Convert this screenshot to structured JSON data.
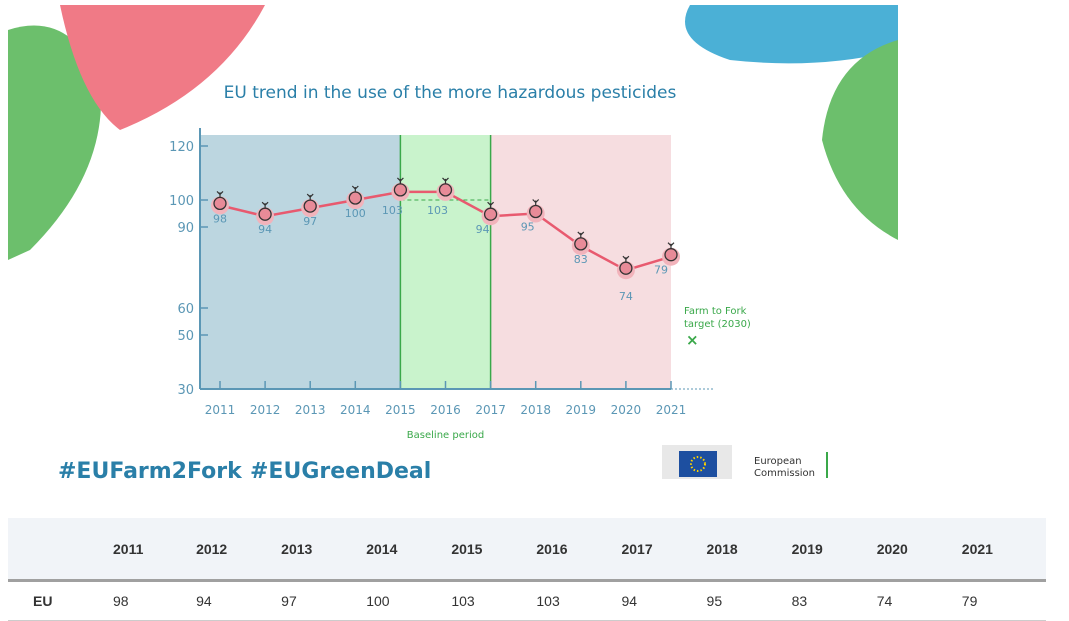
{
  "chart_data": {
    "type": "line",
    "title": "EU trend in the use of the more hazardous pesticides",
    "x": [
      "2011",
      "2012",
      "2013",
      "2014",
      "2015",
      "2016",
      "2017",
      "2018",
      "2019",
      "2020",
      "2021"
    ],
    "series": [
      {
        "values": [
          98,
          94,
          97,
          100,
          103,
          103,
          94,
          95,
          83,
          74,
          79
        ]
      }
    ],
    "y_ticks": [
      120,
      100,
      90,
      60,
      50,
      30
    ],
    "ylim": [
      30,
      120
    ],
    "baseline_label": "Baseline period",
    "baseline_range": [
      "2015",
      "2017"
    ],
    "target_label_1": "Farm to Fork",
    "target_label_2": "target (2030)",
    "target_marker": "×",
    "colors": {
      "line": "#e85a6f",
      "band_before": "#bcd6e0",
      "band_baseline": "#c9f3cc",
      "band_after": "#f6dde0",
      "axis": "#5b97b5",
      "green": "#3aa84a",
      "title": "#2a7fa8"
    }
  },
  "hashtags": [
    "#EUFarm2Fork",
    "#EUGreenDeal"
  ],
  "logo": {
    "line1": "European",
    "line2": "Commission"
  },
  "table": {
    "row_label": "EU",
    "headers": [
      "2011",
      "2012",
      "2013",
      "2014",
      "2015",
      "2016",
      "2017",
      "2018",
      "2019",
      "2020",
      "2021"
    ],
    "values": [
      "98",
      "94",
      "97",
      "100",
      "103",
      "103",
      "94",
      "95",
      "83",
      "74",
      "79"
    ]
  }
}
